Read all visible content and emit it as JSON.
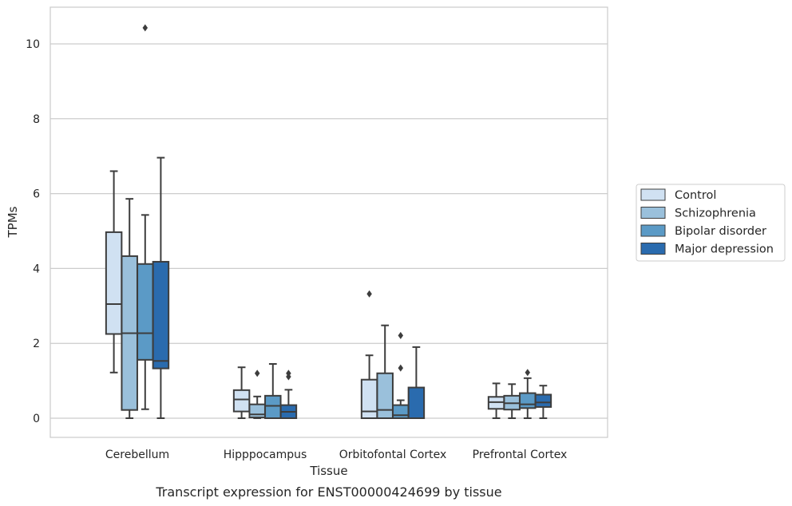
{
  "chart_data": {
    "type": "box",
    "caption": "Transcript expression for ENST00000424699 by tissue",
    "xlabel": "Tissue",
    "ylabel": "TPMs",
    "ylim": [
      -0.5,
      10.95
    ],
    "yticks": [
      0,
      2,
      4,
      6,
      8,
      10
    ],
    "grid": true,
    "legend_position": "right",
    "categories": [
      "Cerebellum",
      "Hipppocampus",
      "Orbitofontal Cortex",
      "Prefrontal Cortex"
    ],
    "series": [
      {
        "name": "Control",
        "color": "#d0e1f2",
        "boxes": [
          {
            "whisker_low": 1.22,
            "q1": 2.25,
            "median": 3.05,
            "q3": 4.97,
            "whisker_high": 6.6,
            "outliers": []
          },
          {
            "whisker_low": 0.0,
            "q1": 0.18,
            "median": 0.5,
            "q3": 0.75,
            "whisker_high": 1.36,
            "outliers": []
          },
          {
            "whisker_low": 0.0,
            "q1": 0.0,
            "median": 0.18,
            "q3": 1.03,
            "whisker_high": 1.68,
            "outliers": [
              3.32
            ]
          },
          {
            "whisker_low": 0.0,
            "q1": 0.25,
            "median": 0.43,
            "q3": 0.57,
            "whisker_high": 0.93,
            "outliers": []
          }
        ]
      },
      {
        "name": "Schizophrenia",
        "color": "#9ac0db",
        "boxes": [
          {
            "whisker_low": 0.0,
            "q1": 0.22,
            "median": 2.27,
            "q3": 4.33,
            "whisker_high": 5.86,
            "outliers": []
          },
          {
            "whisker_low": 0.0,
            "q1": 0.02,
            "median": 0.1,
            "q3": 0.37,
            "whisker_high": 0.58,
            "outliers": [
              1.2
            ]
          },
          {
            "whisker_low": 0.0,
            "q1": 0.0,
            "median": 0.22,
            "q3": 1.2,
            "whisker_high": 2.48,
            "outliers": []
          },
          {
            "whisker_low": 0.0,
            "q1": 0.23,
            "median": 0.4,
            "q3": 0.6,
            "whisker_high": 0.91,
            "outliers": []
          }
        ]
      },
      {
        "name": "Bipolar disorder",
        "color": "#5b9ac6",
        "boxes": [
          {
            "whisker_low": 0.24,
            "q1": 1.56,
            "median": 2.27,
            "q3": 4.12,
            "whisker_high": 5.43,
            "outliers": [
              10.43
            ]
          },
          {
            "whisker_low": 0.0,
            "q1": 0.0,
            "median": 0.33,
            "q3": 0.6,
            "whisker_high": 1.45,
            "outliers": []
          },
          {
            "whisker_low": 0.0,
            "q1": 0.0,
            "median": 0.08,
            "q3": 0.35,
            "whisker_high": 0.48,
            "outliers": [
              2.21,
              1.34
            ]
          },
          {
            "whisker_low": 0.0,
            "q1": 0.27,
            "median": 0.37,
            "q3": 0.67,
            "whisker_high": 1.07,
            "outliers": [
              1.22
            ]
          }
        ]
      },
      {
        "name": "Major depression",
        "color": "#2a6bae",
        "boxes": [
          {
            "whisker_low": 0.0,
            "q1": 1.33,
            "median": 1.53,
            "q3": 4.18,
            "whisker_high": 6.96,
            "outliers": []
          },
          {
            "whisker_low": 0.0,
            "q1": 0.0,
            "median": 0.17,
            "q3": 0.35,
            "whisker_high": 0.76,
            "outliers": [
              1.2,
              1.11
            ]
          },
          {
            "whisker_low": 0.0,
            "q1": 0.0,
            "median": 0.0,
            "q3": 0.82,
            "whisker_high": 1.9,
            "outliers": []
          },
          {
            "whisker_low": 0.0,
            "q1": 0.3,
            "median": 0.42,
            "q3": 0.63,
            "whisker_high": 0.87,
            "outliers": []
          }
        ]
      }
    ]
  }
}
